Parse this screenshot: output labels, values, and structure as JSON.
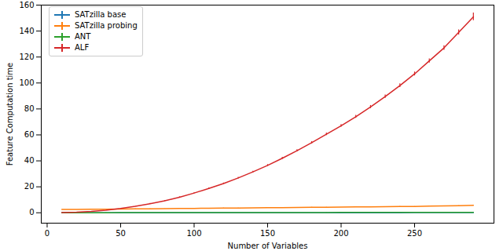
{
  "chart_data": {
    "type": "line",
    "xlabel": "Number of Variables",
    "ylabel": "Feature Computation time",
    "x": [
      10,
      20,
      30,
      40,
      50,
      60,
      70,
      80,
      90,
      100,
      110,
      120,
      130,
      140,
      150,
      160,
      170,
      180,
      190,
      200,
      210,
      220,
      230,
      240,
      250,
      260,
      270,
      280,
      290
    ],
    "series": [
      {
        "name": "SATzilla base",
        "color": "#1f77b4",
        "values": [
          0.02,
          0.02,
          0.03,
          0.03,
          0.03,
          0.04,
          0.04,
          0.04,
          0.05,
          0.05,
          0.05,
          0.05,
          0.06,
          0.06,
          0.06,
          0.06,
          0.07,
          0.07,
          0.07,
          0.07,
          0.08,
          0.08,
          0.08,
          0.08,
          0.09,
          0.09,
          0.09,
          0.1,
          0.1
        ],
        "errors": [
          0.01,
          0.01,
          0.01,
          0.01,
          0.01,
          0.01,
          0.01,
          0.01,
          0.01,
          0.01,
          0.01,
          0.01,
          0.01,
          0.01,
          0.01,
          0.01,
          0.01,
          0.01,
          0.01,
          0.01,
          0.01,
          0.01,
          0.01,
          0.01,
          0.01,
          0.01,
          0.01,
          0.01,
          0.01
        ]
      },
      {
        "name": "SATzilla probing",
        "color": "#ff7f0e",
        "values": [
          2.6,
          2.6,
          2.7,
          2.8,
          2.9,
          3.0,
          3.1,
          3.2,
          3.3,
          3.4,
          3.5,
          3.6,
          3.7,
          3.8,
          3.9,
          4.0,
          4.1,
          4.2,
          4.3,
          4.4,
          4.5,
          4.6,
          4.7,
          4.8,
          4.9,
          5.1,
          5.3,
          5.5,
          5.7
        ],
        "errors": [
          0.05,
          0.05,
          0.05,
          0.05,
          0.05,
          0.05,
          0.05,
          0.05,
          0.05,
          0.05,
          0.05,
          0.05,
          0.05,
          0.05,
          0.05,
          0.05,
          0.05,
          0.05,
          0.05,
          0.05,
          0.05,
          0.05,
          0.05,
          0.05,
          0.05,
          0.05,
          0.05,
          0.1,
          0.1
        ]
      },
      {
        "name": "ANT",
        "color": "#2ca02c",
        "values": [
          0.05,
          0.06,
          0.07,
          0.08,
          0.09,
          0.1,
          0.11,
          0.12,
          0.13,
          0.14,
          0.15,
          0.16,
          0.17,
          0.18,
          0.19,
          0.2,
          0.21,
          0.22,
          0.23,
          0.24,
          0.25,
          0.26,
          0.27,
          0.28,
          0.29,
          0.3,
          0.31,
          0.32,
          0.33
        ],
        "errors": [
          0.01,
          0.01,
          0.01,
          0.01,
          0.01,
          0.01,
          0.01,
          0.01,
          0.01,
          0.01,
          0.01,
          0.01,
          0.01,
          0.01,
          0.01,
          0.01,
          0.01,
          0.01,
          0.01,
          0.01,
          0.01,
          0.01,
          0.01,
          0.01,
          0.01,
          0.01,
          0.01,
          0.01,
          0.01
        ]
      },
      {
        "name": "ALF",
        "color": "#d62728",
        "values": [
          0.1,
          0.4,
          1.0,
          2.0,
          3.3,
          5.0,
          7.0,
          9.2,
          12.0,
          15.2,
          18.7,
          22.5,
          26.8,
          31.5,
          36.5,
          42.0,
          47.8,
          54.0,
          60.5,
          67.0,
          74.0,
          81.5,
          89.5,
          98.0,
          107,
          117,
          127,
          139,
          151
        ],
        "errors": [
          0.02,
          0.05,
          0.1,
          0.1,
          0.15,
          0.2,
          0.3,
          0.3,
          0.4,
          0.4,
          0.5,
          0.5,
          0.6,
          0.6,
          0.7,
          0.8,
          0.8,
          0.9,
          1.0,
          1.0,
          1.1,
          1.2,
          1.3,
          1.4,
          1.5,
          1.6,
          1.8,
          2.0,
          3.0
        ]
      }
    ],
    "xlim": [
      -4,
      304
    ],
    "xticks": [
      0,
      50,
      100,
      150,
      200,
      250
    ],
    "ylim": [
      -8,
      160
    ],
    "yticks": [
      0,
      20,
      40,
      60,
      80,
      100,
      120,
      140,
      160
    ],
    "grid": false,
    "legend": "upper left"
  }
}
